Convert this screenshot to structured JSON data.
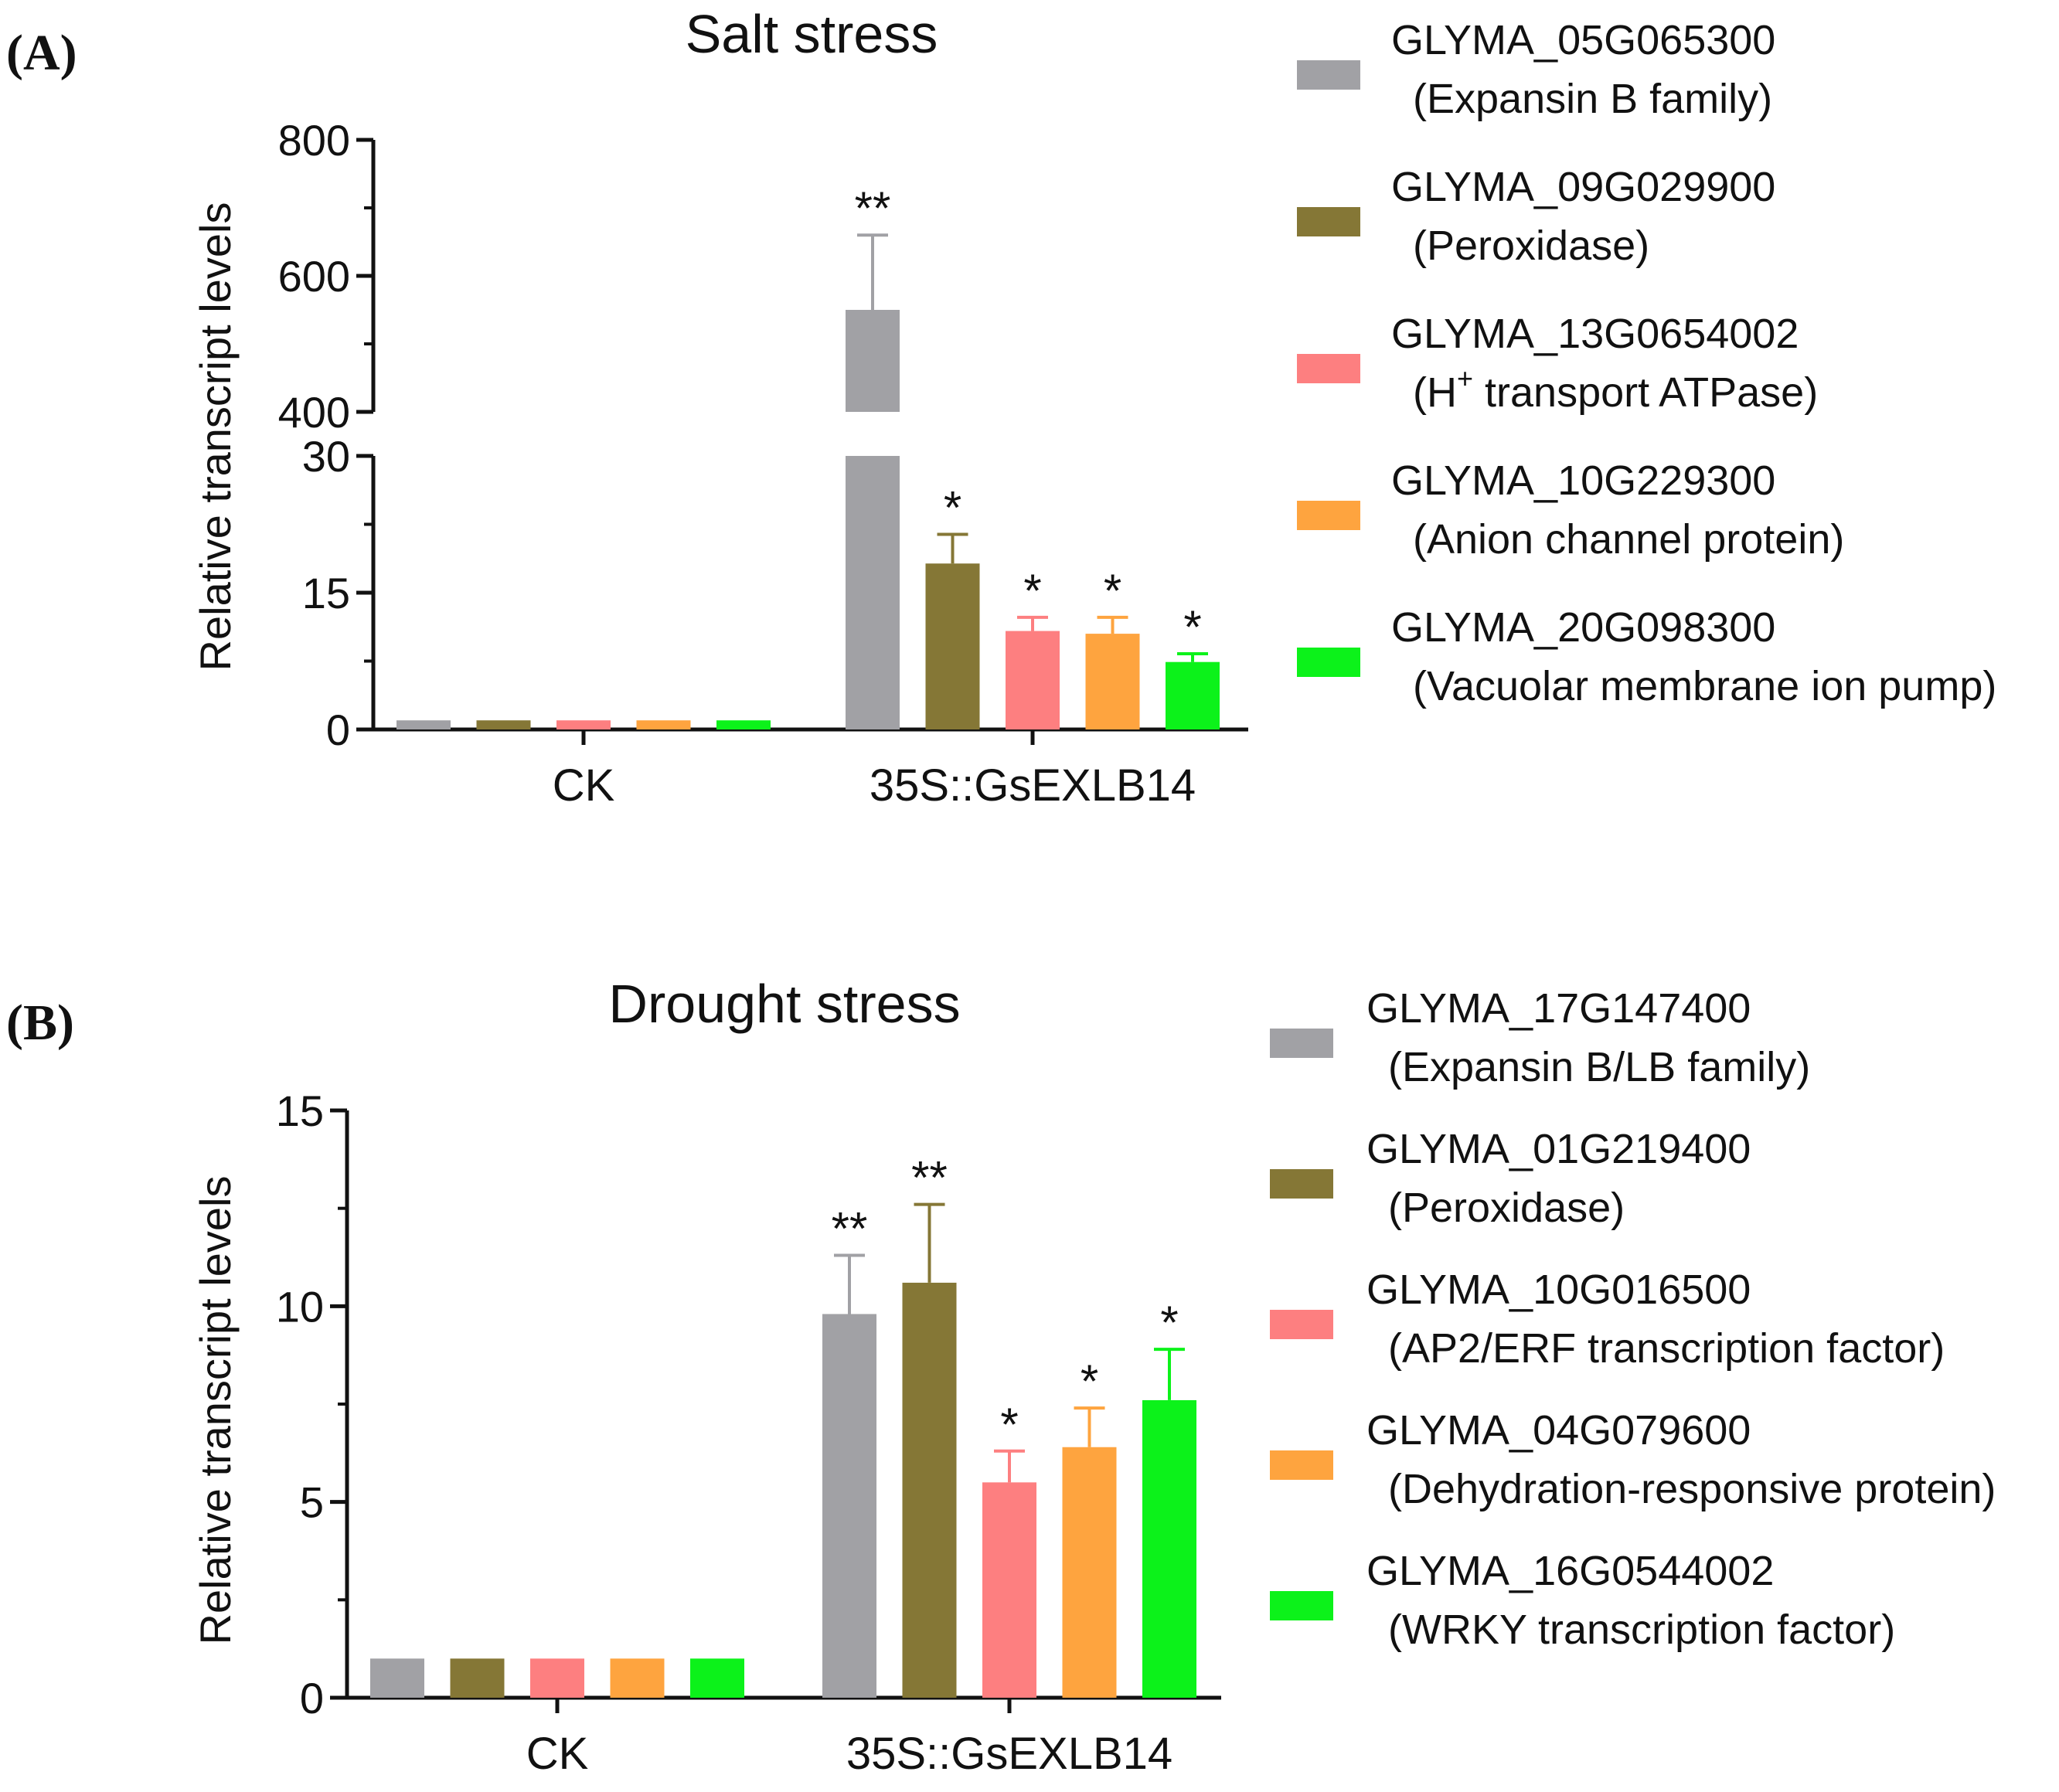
{
  "panels": {
    "a": {
      "label": "(A)"
    },
    "b": {
      "label": "(B)"
    }
  },
  "colors": {
    "gray": "#a1a1a5",
    "olive": "#857736",
    "pink": "#fd7f80",
    "orange": "#fea43f",
    "green": "#0cf21a"
  },
  "chart_data": [
    {
      "type": "bar",
      "title": "Salt stress",
      "xlabel": "",
      "ylabel": "Relative transcript levels",
      "categories": [
        "CK",
        "35S::GsEXLB14"
      ],
      "axis_break": {
        "lower": [
          0,
          30
        ],
        "upper": [
          400,
          800
        ]
      },
      "yticks_lower": [
        0,
        15,
        30
      ],
      "yticks_upper": [
        400,
        600,
        800
      ],
      "series": [
        {
          "name": "GLYMA_05G065300",
          "desc": "(Expansin B family)",
          "color": "#a1a1a5",
          "values": [
            1,
            550
          ],
          "errors": [
            0,
            110
          ],
          "sig": [
            "",
            "**"
          ]
        },
        {
          "name": "GLYMA_09G029900",
          "desc": "(Peroxidase)",
          "color": "#857736",
          "values": [
            1,
            18.2
          ],
          "errors": [
            0,
            3.2
          ],
          "sig": [
            "",
            "*"
          ]
        },
        {
          "name": "GLYMA_13G0654002",
          "desc_pre": "(H",
          "desc_sup": "+",
          "desc_post": " transport ATPase)",
          "color": "#fd7f80",
          "values": [
            1,
            10.8
          ],
          "errors": [
            0,
            1.5
          ],
          "sig": [
            "",
            "*"
          ]
        },
        {
          "name": "GLYMA_10G229300",
          "desc": "(Anion channel protein)",
          "color": "#fea43f",
          "values": [
            1,
            10.5
          ],
          "errors": [
            0,
            1.8
          ],
          "sig": [
            "",
            "*"
          ]
        },
        {
          "name": "GLYMA_20G098300",
          "desc": "(Vacuolar membrane ion pump)",
          "color": "#0cf21a",
          "values": [
            1,
            7.4
          ],
          "errors": [
            0,
            0.9
          ],
          "sig": [
            "",
            "*"
          ]
        }
      ]
    },
    {
      "type": "bar",
      "title": "Drought stress",
      "xlabel": "",
      "ylabel": "Relative transcript levels",
      "categories": [
        "CK",
        "35S::GsEXLB14"
      ],
      "ylim": [
        0,
        15
      ],
      "yticks": [
        0,
        5,
        10,
        15
      ],
      "series": [
        {
          "name": "GLYMA_17G147400",
          "desc": "(Expansin B/LB family)",
          "color": "#a1a1a5",
          "values": [
            1,
            9.8
          ],
          "errors": [
            0,
            1.5
          ],
          "sig": [
            "",
            "**"
          ]
        },
        {
          "name": "GLYMA_01G219400",
          "desc": "(Peroxidase)",
          "color": "#857736",
          "values": [
            1,
            10.6
          ],
          "errors": [
            0,
            2.0
          ],
          "sig": [
            "",
            "**"
          ]
        },
        {
          "name": "GLYMA_10G016500",
          "desc": "(AP2/ERF transcription factor)",
          "color": "#fd7f80",
          "values": [
            1,
            5.5
          ],
          "errors": [
            0,
            0.8
          ],
          "sig": [
            "",
            "*"
          ]
        },
        {
          "name": "GLYMA_04G079600",
          "desc": "(Dehydration-responsive protein)",
          "color": "#fea43f",
          "values": [
            1,
            6.4
          ],
          "errors": [
            0,
            1.0
          ],
          "sig": [
            "",
            "*"
          ]
        },
        {
          "name": "GLYMA_16G0544002",
          "desc": "(WRKY transcription factor)",
          "color": "#0cf21a",
          "values": [
            1,
            7.6
          ],
          "errors": [
            0,
            1.3
          ],
          "sig": [
            "",
            "*"
          ]
        }
      ]
    }
  ]
}
